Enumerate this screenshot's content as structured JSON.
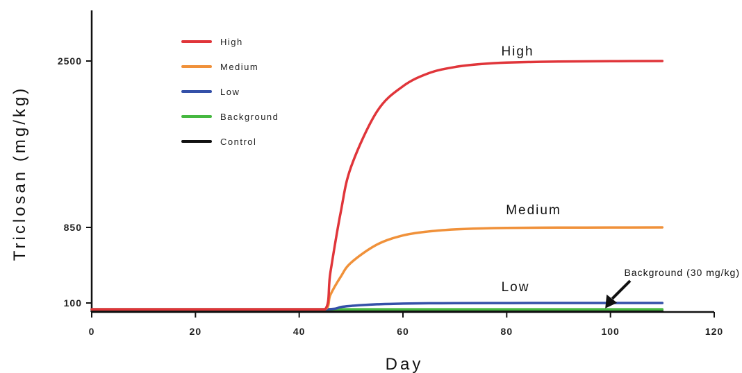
{
  "chart_data": {
    "type": "line",
    "xlabel": "Day",
    "ylabel": "Triclosan (mg/kg)",
    "xlim": [
      0,
      120
    ],
    "x_ticks": [
      0,
      20,
      40,
      60,
      80,
      100,
      120
    ],
    "y_ticks": [
      "100",
      "850",
      "2500"
    ],
    "legend_position": "top-left",
    "grid": false,
    "series": [
      {
        "name": "High",
        "color": "#e0353a",
        "x": [
          0,
          45,
          46,
          48,
          50,
          55,
          60,
          65,
          70,
          75,
          80,
          90,
          100,
          110
        ],
        "y": [
          30,
          30,
          400,
          1000,
          1450,
          2000,
          2250,
          2380,
          2440,
          2470,
          2485,
          2495,
          2498,
          2500
        ]
      },
      {
        "name": "Medium",
        "color": "#f0913a",
        "x": [
          0,
          45,
          46,
          48,
          50,
          55,
          60,
          65,
          70,
          75,
          80,
          90,
          100,
          110
        ],
        "y": [
          30,
          30,
          180,
          360,
          500,
          680,
          770,
          810,
          830,
          840,
          845,
          848,
          849,
          850
        ]
      },
      {
        "name": "Low",
        "color": "#3450a8",
        "x": [
          0,
          45,
          48,
          50,
          55,
          60,
          65,
          70,
          80,
          90,
          100,
          110
        ],
        "y": [
          30,
          30,
          55,
          68,
          85,
          93,
          97,
          98,
          99,
          100,
          100,
          100
        ]
      },
      {
        "name": "Background",
        "color": "#46b840",
        "x": [
          0,
          45,
          50,
          60,
          70,
          80,
          90,
          100,
          110
        ],
        "y": [
          30,
          30,
          30,
          30,
          30,
          30,
          30,
          30,
          30
        ]
      },
      {
        "name": "Control",
        "color": "#111111",
        "x": [
          0,
          45,
          50,
          60,
          70,
          80,
          90,
          100,
          110
        ],
        "y": [
          10,
          10,
          10,
          10,
          10,
          10,
          10,
          10,
          10
        ]
      }
    ],
    "annotations": [
      {
        "text": "High",
        "series": "High"
      },
      {
        "text": "Medium",
        "series": "Medium"
      },
      {
        "text": "Low",
        "series": "Low"
      },
      {
        "text": "Background (30 mg/kg)",
        "series": "Background",
        "arrow": true
      }
    ]
  }
}
